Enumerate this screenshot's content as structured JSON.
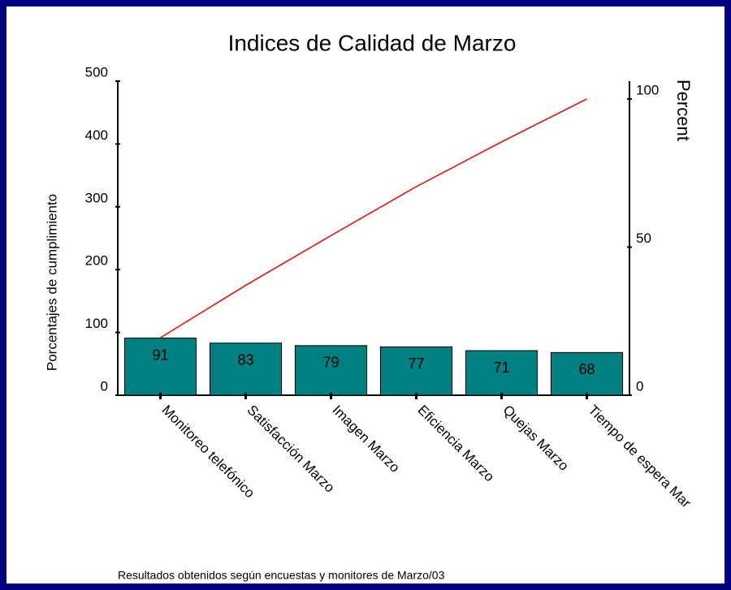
{
  "chart_data": {
    "type": "bar",
    "title": "Indices de Calidad de Marzo",
    "ylabel": "Porcentajes de cumplimiento",
    "y2label": "Percent",
    "footnote": "Resultados obtenidos según encuestas y monitores de Marzo/03",
    "categories": [
      "Monitoreo telefónico",
      "Satisfacción Marzo",
      "Imagen Marzo",
      "Eficiencia Marzo",
      "Quejas Marzo",
      "Tiempo de espera Mar"
    ],
    "series": [
      {
        "type": "bar",
        "color": "#008080",
        "values": [
          91,
          83,
          79,
          77,
          71,
          68
        ]
      },
      {
        "type": "line",
        "axis": "y2",
        "color": "#ff0000",
        "values": [
          19.4,
          37.1,
          53.9,
          70.4,
          85.5,
          100
        ]
      }
    ],
    "ylim": [
      0,
      500
    ],
    "yticks": [
      0,
      100,
      200,
      300,
      400,
      500
    ],
    "y2lim": [
      0,
      106
    ],
    "y2ticks": [
      0,
      50,
      100
    ]
  }
}
